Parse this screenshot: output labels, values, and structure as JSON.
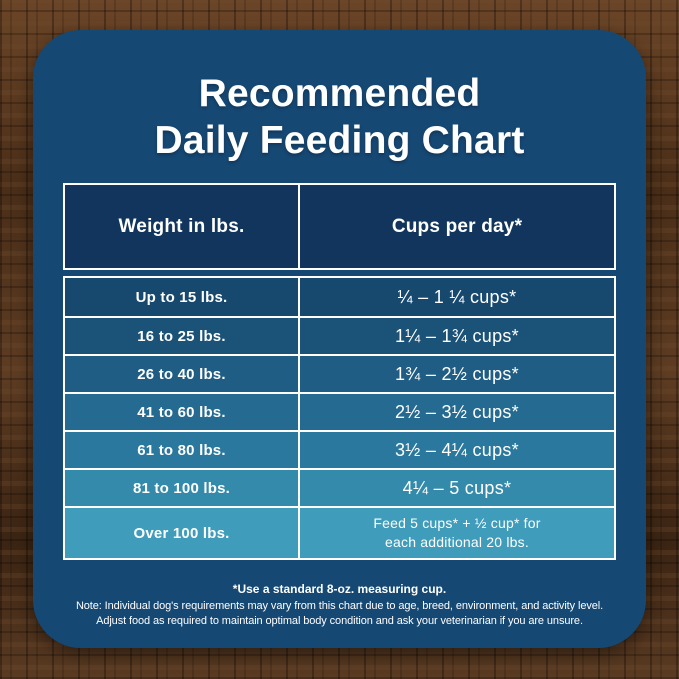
{
  "title": {
    "line1": "Recommended",
    "line2": "Daily Feeding Chart"
  },
  "table": {
    "headers": [
      "Weight in lbs.",
      "Cups per day*"
    ],
    "rows": [
      {
        "weight": "Up to 15 lbs.",
        "cups": "¼ – 1 ¼ cups*",
        "bg": "#17496F"
      },
      {
        "weight": "16 to 25 lbs.",
        "cups": "1¼ – 1¾ cups*",
        "bg": "#1B5278"
      },
      {
        "weight": "26 to 40 lbs.",
        "cups": "1¾ – 2½ cups*",
        "bg": "#1F5D84"
      },
      {
        "weight": "41 to 60 lbs.",
        "cups": "2½ – 3½ cups*",
        "bg": "#256A91"
      },
      {
        "weight": "61 to 80 lbs.",
        "cups": "3½ – 4¼ cups*",
        "bg": "#2B789E"
      },
      {
        "weight": "81 to 100 lbs.",
        "cups": "4¼ – 5 cups*",
        "bg": "#338AAB"
      },
      {
        "weight": "Over 100 lbs.",
        "cups": "Feed 5 cups* + ½ cup* for",
        "cups2": "each additional 20 lbs.",
        "bg": "#3F9CBA"
      }
    ]
  },
  "footnotes": {
    "measuring_cup": "*Use a standard 8-oz. measuring cup.",
    "note_line1": "Note: Individual dog's requirements may vary from this chart due to age, breed, environment, and activity level.",
    "note_line2": "Adjust food as required to maintain optimal body condition and ask your veterinarian if you are unsure."
  },
  "colors": {
    "card_bg": "#164874",
    "header_bg": "#11355C",
    "border": "#FFFFFF",
    "title_text": "#FFFFFF",
    "cell_text": "#FFFFFF"
  },
  "chart_data": {
    "type": "table",
    "title": "Recommended Daily Feeding Chart",
    "columns": [
      "Weight in lbs.",
      "Cups per day*"
    ],
    "rows": [
      [
        "Up to 15 lbs.",
        "¼ – 1 ¼ cups*"
      ],
      [
        "16 to 25 lbs.",
        "1¼ – 1¾ cups*"
      ],
      [
        "26 to 40 lbs.",
        "1¾ – 2½ cups*"
      ],
      [
        "41 to 60 lbs.",
        "2½ – 3½ cups*"
      ],
      [
        "61 to 80 lbs.",
        "3½ – 4¼ cups*"
      ],
      [
        "81 to 100 lbs.",
        "4¼ – 5 cups*"
      ],
      [
        "Over 100 lbs.",
        "Feed 5 cups* + ½ cup* for each additional 20 lbs."
      ]
    ],
    "rows_numeric": [
      {
        "weight_min_lbs": 0,
        "weight_max_lbs": 15,
        "cups_min": 0.25,
        "cups_max": 1.25
      },
      {
        "weight_min_lbs": 16,
        "weight_max_lbs": 25,
        "cups_min": 1.25,
        "cups_max": 1.75
      },
      {
        "weight_min_lbs": 26,
        "weight_max_lbs": 40,
        "cups_min": 1.75,
        "cups_max": 2.5
      },
      {
        "weight_min_lbs": 41,
        "weight_max_lbs": 60,
        "cups_min": 2.5,
        "cups_max": 3.5
      },
      {
        "weight_min_lbs": 61,
        "weight_max_lbs": 80,
        "cups_min": 3.5,
        "cups_max": 4.25
      },
      {
        "weight_min_lbs": 81,
        "weight_max_lbs": 100,
        "cups_min": 4.25,
        "cups_max": 5
      },
      {
        "weight_min_lbs": 100,
        "weight_max_lbs": null,
        "cups_base": 5,
        "cups_extra_per_20_lbs": 0.5
      }
    ],
    "notes": [
      "*Use a standard 8-oz. measuring cup.",
      "Note: Individual dog's requirements may vary from this chart due to age, breed, environment, and activity level.",
      "Adjust food as required to maintain optimal body condition and ask your veterinarian if you are unsure."
    ]
  }
}
